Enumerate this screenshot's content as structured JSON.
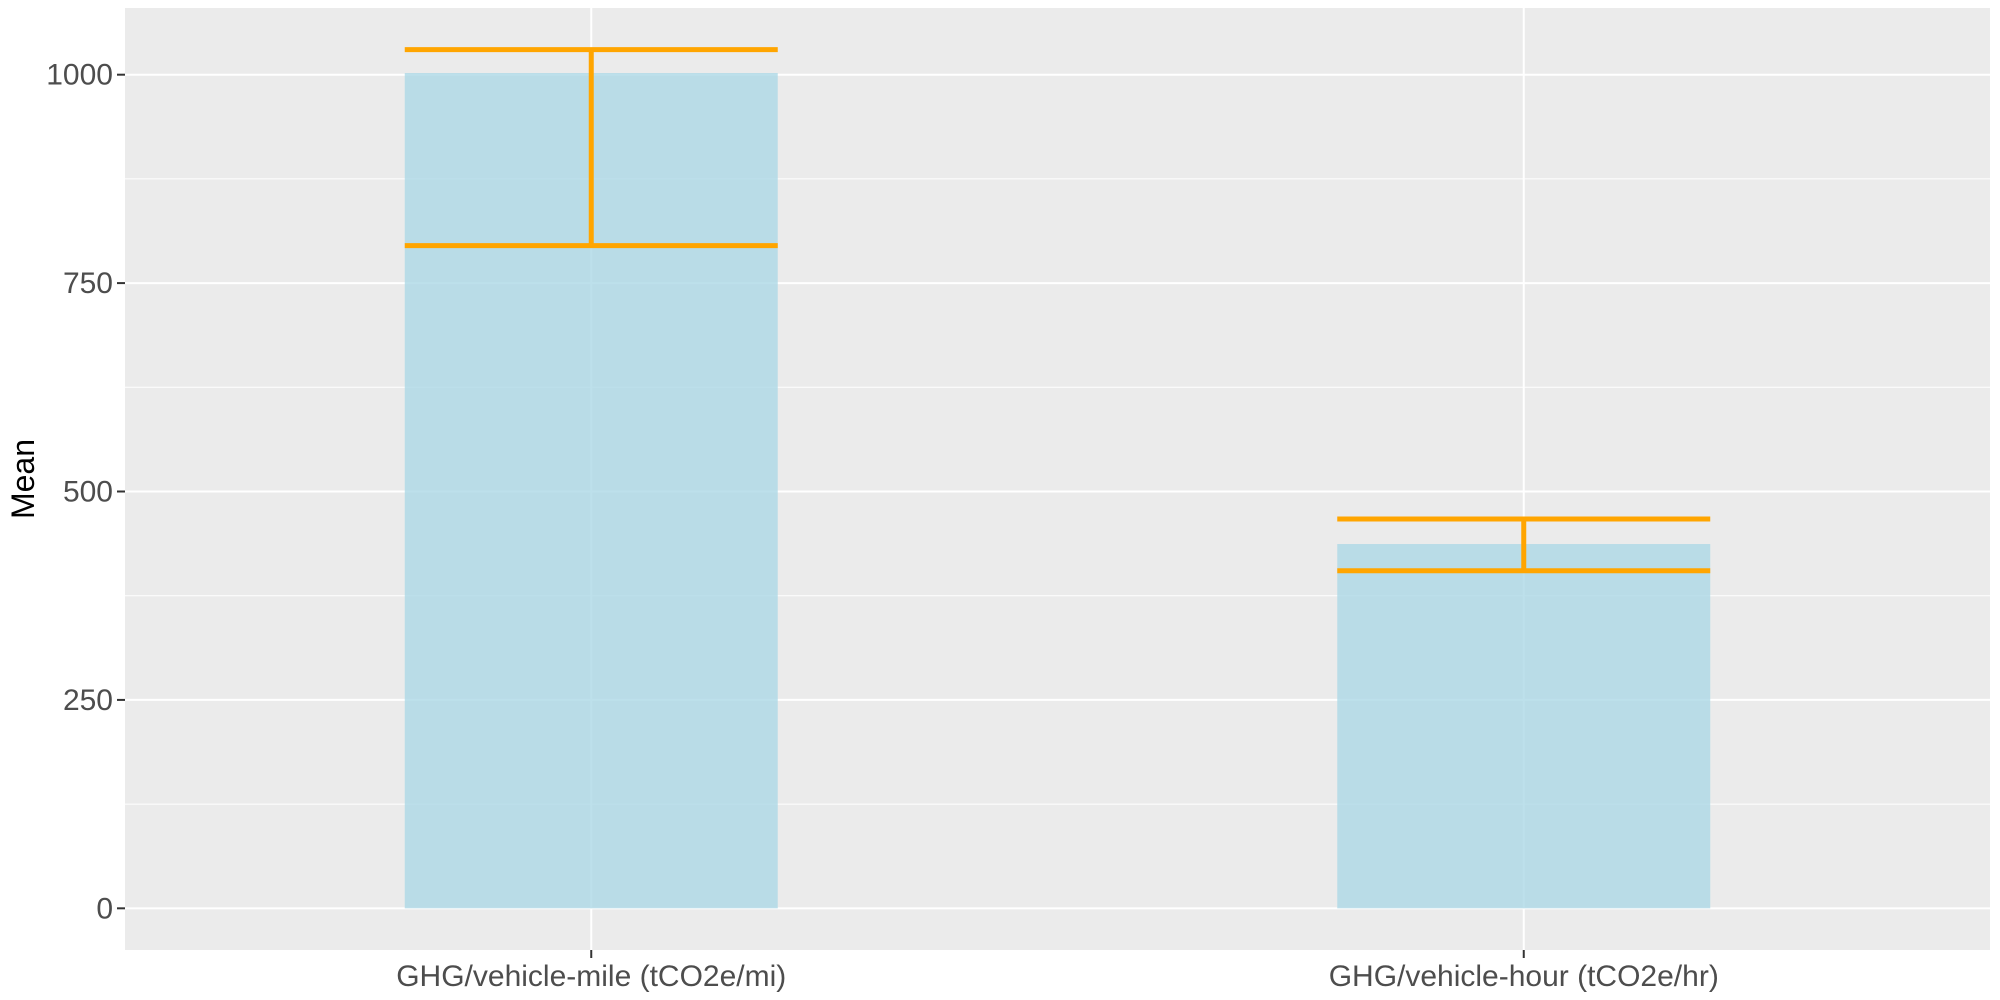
{
  "chart_data": {
    "type": "bar",
    "title": "",
    "xlabel": "",
    "ylabel": "Mean",
    "categories": [
      "GHG/vehicle-mile (tCO2e/mi)",
      "GHG/vehicle-hour (tCO2e/hr)"
    ],
    "values": [
      1002,
      437
    ],
    "error_bars": [
      {
        "low": 795,
        "high": 1030
      },
      {
        "low": 405,
        "high": 467
      }
    ],
    "yticks": [
      0,
      250,
      500,
      750,
      1000
    ],
    "ylim": [
      -50,
      1080
    ],
    "grid": true,
    "colors": {
      "panel_background": "#ebebeb",
      "grid_major": "#ffffff",
      "bar_fill": "#add8e6",
      "bar_opacity": 0.8,
      "error_bar": "#ffa500"
    }
  }
}
